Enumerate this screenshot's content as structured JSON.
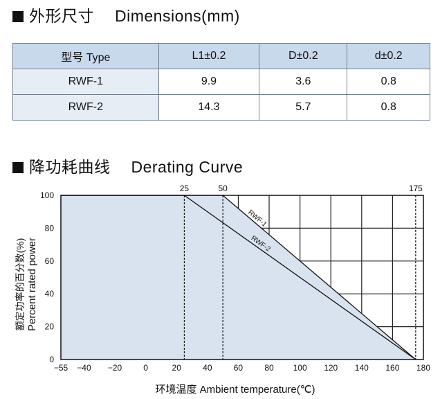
{
  "dimensions_section": {
    "title_cn": "外形尺寸",
    "title_en": "Dimensions(mm)",
    "table": {
      "headers": [
        "型号 Type",
        "L1±0.2",
        "D±0.2",
        "d±0.2"
      ],
      "rows": [
        [
          "RWF-1",
          "9.9",
          "3.6",
          "0.8"
        ],
        [
          "RWF-2",
          "14.3",
          "5.7",
          "0.8"
        ]
      ]
    }
  },
  "derating_section": {
    "title_cn": "降功耗曲线",
    "title_en": "Derating Curve"
  },
  "chart_data": {
    "type": "line",
    "xlabel": "环境温度 Ambient temperature(℃)",
    "ylabel_cn": "额定功率的百分数(%)",
    "ylabel_en": "Percent rated power",
    "x_ticks": [
      "-55",
      "-40",
      "-20",
      "0",
      "20",
      "40",
      "60",
      "80",
      "100",
      "120",
      "140",
      "160",
      "180"
    ],
    "y_ticks": [
      "0",
      "20",
      "40",
      "60",
      "80",
      "100"
    ],
    "top_labels": [
      "25",
      "50",
      "175"
    ],
    "xlim": [
      -55,
      180
    ],
    "ylim": [
      0,
      100
    ],
    "grid": true,
    "fill_color": "#d9e3ef",
    "series": [
      {
        "name": "RWF-1",
        "x": [
          -55,
          50,
          175
        ],
        "y": [
          100,
          100,
          0
        ]
      },
      {
        "name": "RWF-2",
        "x": [
          -55,
          25,
          175
        ],
        "y": [
          100,
          100,
          0
        ]
      }
    ]
  }
}
